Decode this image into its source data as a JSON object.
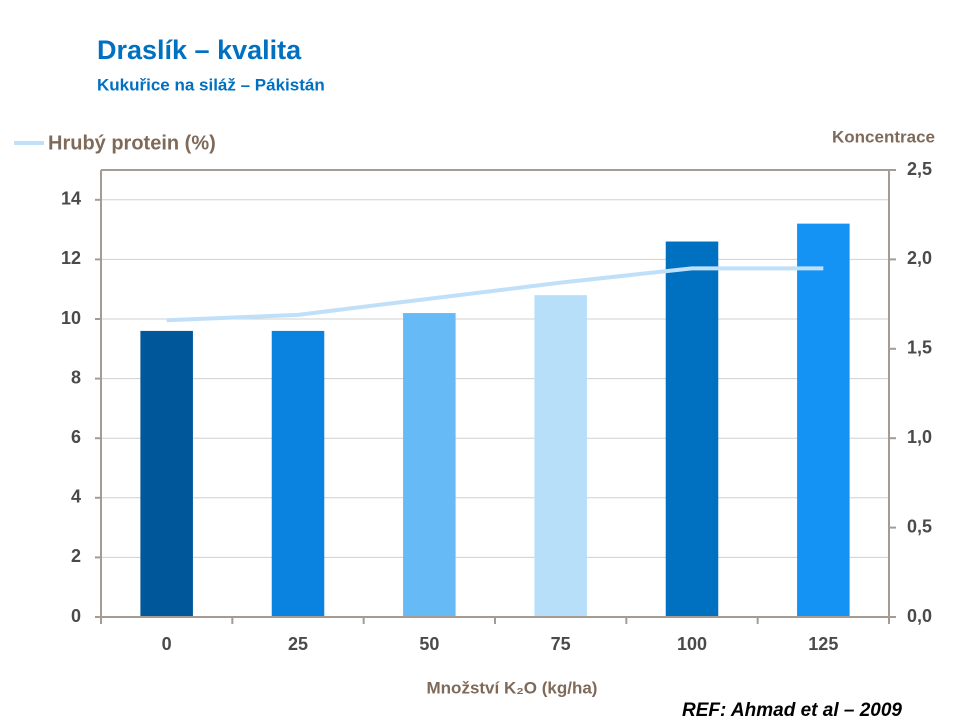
{
  "chart_data": {
    "type": "bar",
    "title": "Draslík – kvalita",
    "subtitle": "Kukuřice na siláž – Pákistán",
    "x_label": "Množství K₂O (kg/ha)",
    "y2_label": "Koncentrace",
    "annotation": "REF: Ahmad et al – 2009",
    "categories": [
      "0",
      "25",
      "50",
      "75",
      "100",
      "125"
    ],
    "bar_colors": [
      "#00579a",
      "#0a82e0",
      "#66bbf7",
      "#b7dffa",
      "#0070c0",
      "#1493f5"
    ],
    "values": [
      9.6,
      9.6,
      10.2,
      10.8,
      12.6,
      13.2
    ],
    "series": [
      {
        "name": "Hrubý protein (%)",
        "color": "#bfe0f8",
        "axis": "y2",
        "values": [
          1.66,
          1.69,
          1.78,
          1.87,
          1.95,
          1.95
        ]
      }
    ],
    "ylim": [
      0,
      15
    ],
    "yticks": [
      0,
      2,
      4,
      6,
      8,
      10,
      12,
      14
    ],
    "y2lim": [
      0,
      2.5
    ],
    "y2ticks": [
      {
        "value": 0,
        "label": "0,0"
      },
      {
        "value": 0.5,
        "label": "0,5"
      },
      {
        "value": 1,
        "label": "1,0"
      },
      {
        "value": 1.5,
        "label": "1,5"
      },
      {
        "value": 2,
        "label": "2,0"
      },
      {
        "value": 2.5,
        "label": "2,5"
      }
    ],
    "grid": true,
    "legend": "top-left"
  }
}
